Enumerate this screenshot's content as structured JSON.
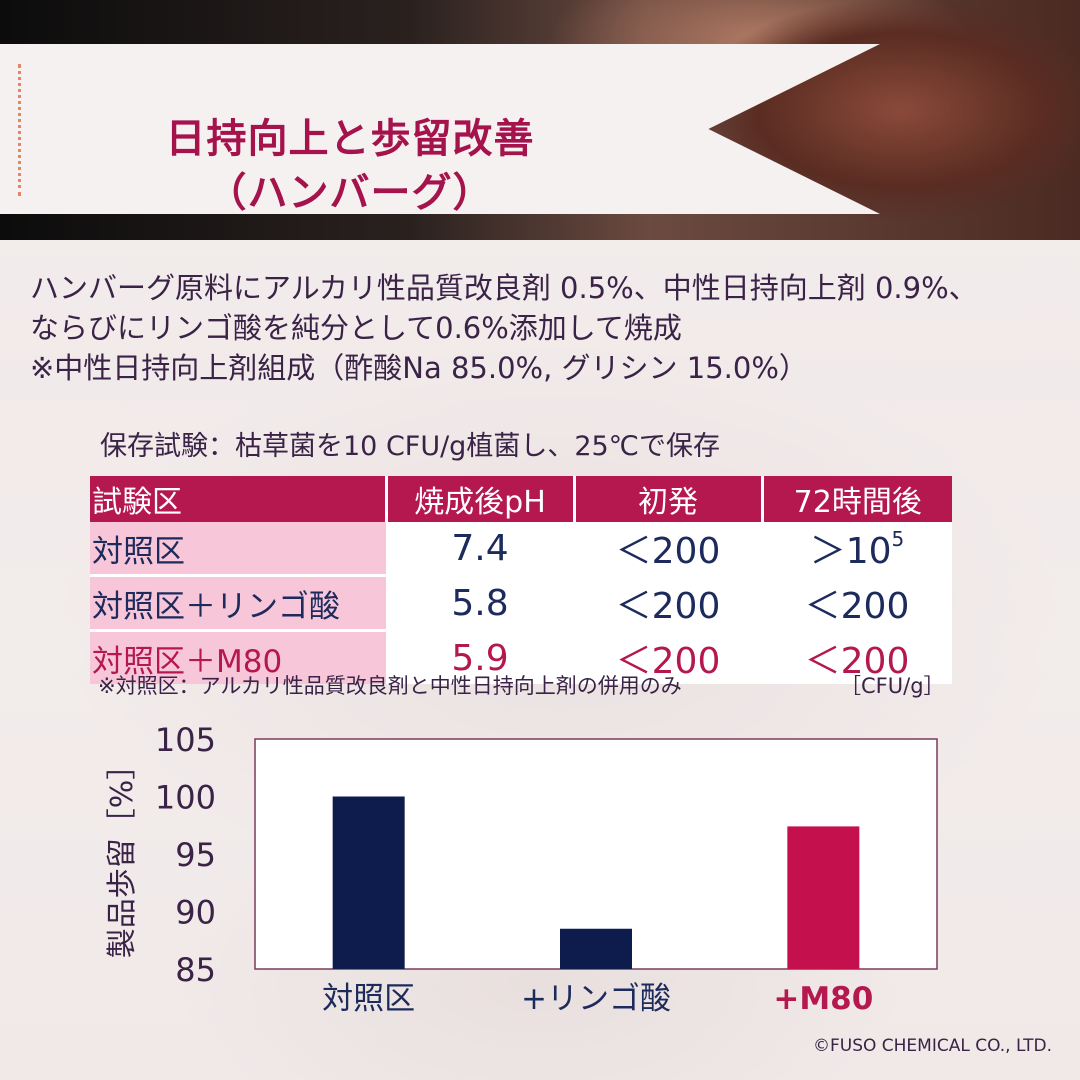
{
  "banner": {
    "title_line1": "日持向上と歩留改善",
    "title_line2": "（ハンバーグ）"
  },
  "intro": {
    "line1": "ハンバーグ原料にアルカリ性品質改良剤 0.5%、中性日持向上剤 0.9%、",
    "line2": "ならびにリンゴ酸を純分として0.6%添加して焼成",
    "line3": "※中性日持向上剤組成（酢酸Na 85.0%, グリシン 15.0%）"
  },
  "test_caption": "保存試験：枯草菌を10 CFU/g植菌し、25℃で保存",
  "table": {
    "headers": [
      "試験区",
      "焼成後pH",
      "初発",
      "72時間後"
    ],
    "rows": [
      {
        "label": "対照区",
        "ph": "7.4",
        "initial": "＜200",
        "after72_base": "＞10",
        "after72_exp": "5"
      },
      {
        "label": "対照区＋リンゴ酸",
        "ph": "5.8",
        "initial": "＜200",
        "after72": "＜200"
      },
      {
        "label": "対照区＋M80",
        "ph": "5.9",
        "initial": "＜200",
        "after72": "＜200"
      }
    ],
    "note": "※対照区：アルカリ性品質改良剤と中性日持向上剤の併用のみ",
    "unit": "［CFU/g］"
  },
  "chart_data": {
    "type": "bar",
    "categories": [
      "対照区",
      "+リンゴ酸",
      "+M80"
    ],
    "values": [
      100.0,
      88.5,
      97.4
    ],
    "bar_colors": [
      "#0d1b4d",
      "#0d1b4d",
      "#c4104c"
    ],
    "category_label_colors": [
      "#1c2a5c",
      "#1c2a5c",
      "#b5174f"
    ],
    "ylabel": "製品歩留［%］",
    "ylim": [
      85,
      105
    ],
    "yticks": [
      85,
      90,
      95,
      100,
      105
    ],
    "grid": false
  },
  "copyright": "©FUSO CHEMICAL CO., LTD.",
  "colors": {
    "accent": "#b5174f",
    "navy": "#1c2a5c",
    "pink": "#f7c7d9"
  }
}
